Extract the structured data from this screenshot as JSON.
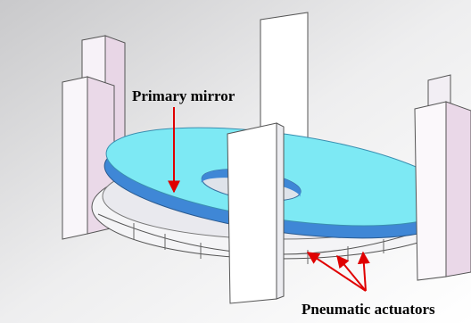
{
  "annotations": [
    {
      "label": "Primary mirror"
    },
    {
      "label": "Pneumatic actuators"
    }
  ]
}
